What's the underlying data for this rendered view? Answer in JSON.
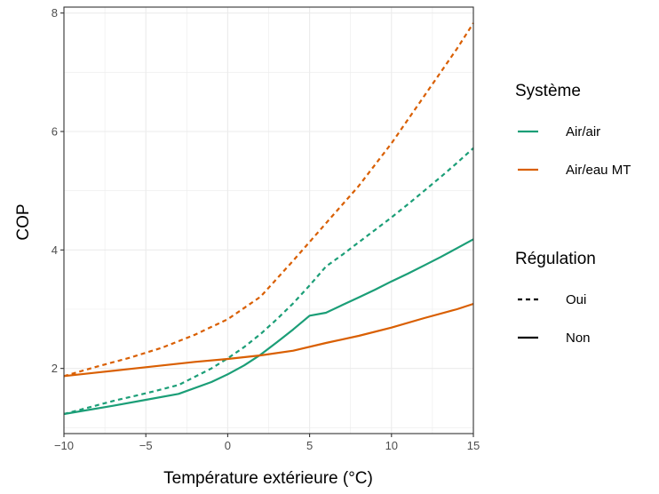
{
  "chart_data": {
    "type": "line",
    "xlabel": "Température extérieure (°C)",
    "ylabel": "COP",
    "xlim": [
      -10,
      15
    ],
    "ylim": [
      0.9,
      8.1
    ],
    "x_ticks": [
      -10,
      -5,
      0,
      5,
      10,
      15
    ],
    "x_tick_labels": [
      "−10",
      "−5",
      "0",
      "5",
      "10",
      "15"
    ],
    "y_ticks": [
      2,
      4,
      6,
      8
    ],
    "y_tick_labels": [
      "2",
      "4",
      "6",
      "8"
    ],
    "grid": true,
    "legend_position": "right",
    "colors": {
      "Air/air": "#1b9e77",
      "Air/eau MT": "#d95f02"
    },
    "legends": [
      {
        "title": "Système",
        "kind": "color",
        "entries": [
          {
            "label": "Air/air",
            "color": "#1b9e77"
          },
          {
            "label": "Air/eau MT",
            "color": "#d95f02"
          }
        ]
      },
      {
        "title": "Régulation",
        "kind": "linetype",
        "entries": [
          {
            "label": "Oui",
            "dash": "dashed"
          },
          {
            "label": "Non",
            "dash": "solid"
          }
        ]
      }
    ],
    "series": [
      {
        "system": "Air/air",
        "regulation": "Oui",
        "x": [
          -10,
          -7,
          -5,
          -3,
          -1,
          0,
          1,
          2,
          3,
          4,
          5,
          6,
          7,
          8,
          9,
          10,
          11,
          12,
          13,
          14,
          15
        ],
        "y": [
          1.23,
          1.45,
          1.58,
          1.72,
          2.0,
          2.17,
          2.36,
          2.58,
          2.83,
          3.1,
          3.4,
          3.72,
          3.92,
          4.13,
          4.34,
          4.55,
          4.77,
          5.0,
          5.23,
          5.47,
          5.72
        ]
      },
      {
        "system": "Air/air",
        "regulation": "Non",
        "x": [
          -10,
          -7,
          -5,
          -3,
          -1,
          0,
          1,
          2,
          3,
          4,
          5,
          6,
          7,
          8,
          9,
          10,
          11,
          12,
          13,
          14,
          15
        ],
        "y": [
          1.23,
          1.37,
          1.47,
          1.57,
          1.77,
          1.9,
          2.05,
          2.23,
          2.44,
          2.66,
          2.89,
          2.94,
          3.07,
          3.2,
          3.33,
          3.47,
          3.6,
          3.74,
          3.88,
          4.03,
          4.18
        ]
      },
      {
        "system": "Air/eau MT",
        "regulation": "Oui",
        "x": [
          -10,
          -8,
          -6,
          -4,
          -2,
          0,
          2,
          4,
          6,
          8,
          10,
          12,
          14,
          15
        ],
        "y": [
          1.87,
          2.03,
          2.18,
          2.35,
          2.57,
          2.83,
          3.21,
          3.82,
          4.45,
          5.08,
          5.8,
          6.6,
          7.4,
          7.83
        ]
      },
      {
        "system": "Air/eau MT",
        "regulation": "Non",
        "x": [
          -10,
          -8,
          -6,
          -4,
          -2,
          0,
          2,
          4,
          6,
          8,
          10,
          12,
          14,
          15
        ],
        "y": [
          1.87,
          1.93,
          1.99,
          2.05,
          2.11,
          2.16,
          2.22,
          2.3,
          2.43,
          2.55,
          2.69,
          2.85,
          3.0,
          3.09
        ]
      }
    ]
  }
}
